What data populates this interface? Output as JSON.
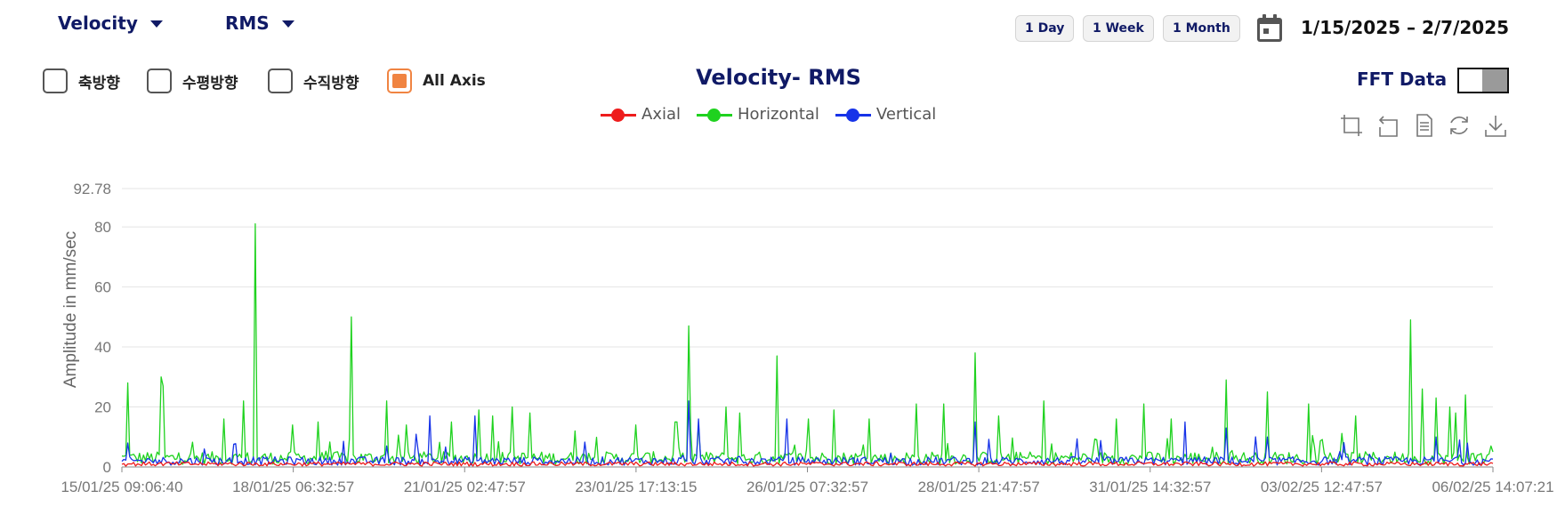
{
  "header": {
    "metric_dropdown": "Velocity",
    "stat_dropdown": "RMS",
    "range_buttons": [
      "1 Day",
      "1 Week",
      "1 Month"
    ],
    "date_range": "1/15/2025 – 2/7/2025"
  },
  "axis_filters": [
    {
      "label": "축방향",
      "checked": false
    },
    {
      "label": "수평방향",
      "checked": false
    },
    {
      "label": "수직방향",
      "checked": false
    },
    {
      "label": "All Axis",
      "checked": true
    }
  ],
  "fft": {
    "label": "FFT Data",
    "enabled": false
  },
  "toolbox_icons": [
    "zoom-icon",
    "zoom-reset-icon",
    "data-view-icon",
    "restore-icon",
    "save-image-icon"
  ],
  "colors": {
    "axial": "#ee1c1c",
    "horizontal": "#1fd21f",
    "vertical": "#1733e8",
    "accent": "#f08442",
    "navy": "#101a66"
  },
  "chart_data": {
    "type": "line",
    "title": "Velocity- RMS",
    "ylabel": "Amplitude in mm/sec",
    "xlabel": "",
    "ylim": [
      0,
      92.78
    ],
    "yticks": [
      0,
      20,
      40,
      60,
      80,
      92.78
    ],
    "x_tick_labels": [
      "15/01/25 09:06:40",
      "18/01/25 06:32:57",
      "21/01/25 02:47:57",
      "23/01/25 17:13:15",
      "26/01/25 07:32:57",
      "28/01/25 21:47:57",
      "31/01/25 14:32:57",
      "03/02/25 12:47:57",
      "06/02/25 14:07:21"
    ],
    "grid": true,
    "legend_position": "top-center",
    "series": [
      {
        "name": "Axial",
        "baseline": 1,
        "spikes": []
      },
      {
        "name": "Horizontal",
        "baseline": 3,
        "spikes": [
          {
            "t": 0.004,
            "v": 28
          },
          {
            "t": 0.028,
            "v": 30
          },
          {
            "t": 0.03,
            "v": 27
          },
          {
            "t": 0.075,
            "v": 16
          },
          {
            "t": 0.088,
            "v": 22
          },
          {
            "t": 0.097,
            "v": 81
          },
          {
            "t": 0.125,
            "v": 14
          },
          {
            "t": 0.143,
            "v": 15
          },
          {
            "t": 0.168,
            "v": 50
          },
          {
            "t": 0.193,
            "v": 22
          },
          {
            "t": 0.208,
            "v": 14
          },
          {
            "t": 0.24,
            "v": 15
          },
          {
            "t": 0.26,
            "v": 19
          },
          {
            "t": 0.27,
            "v": 17
          },
          {
            "t": 0.285,
            "v": 20
          },
          {
            "t": 0.297,
            "v": 18
          },
          {
            "t": 0.33,
            "v": 12
          },
          {
            "t": 0.375,
            "v": 14
          },
          {
            "t": 0.405,
            "v": 24
          },
          {
            "t": 0.404,
            "v": 15
          },
          {
            "t": 0.405,
            "v": 15
          },
          {
            "t": 0.414,
            "v": 47
          },
          {
            "t": 0.42,
            "v": 14
          },
          {
            "t": 0.44,
            "v": 20
          },
          {
            "t": 0.45,
            "v": 18
          },
          {
            "t": 0.478,
            "v": 37
          },
          {
            "t": 0.5,
            "v": 16
          },
          {
            "t": 0.52,
            "v": 19
          },
          {
            "t": 0.545,
            "v": 16
          },
          {
            "t": 0.58,
            "v": 21
          },
          {
            "t": 0.6,
            "v": 21
          },
          {
            "t": 0.622,
            "v": 38
          },
          {
            "t": 0.64,
            "v": 17
          },
          {
            "t": 0.672,
            "v": 22
          },
          {
            "t": 0.725,
            "v": 16
          },
          {
            "t": 0.745,
            "v": 21
          },
          {
            "t": 0.765,
            "v": 16
          },
          {
            "t": 0.805,
            "v": 29
          },
          {
            "t": 0.835,
            "v": 25
          },
          {
            "t": 0.865,
            "v": 21
          },
          {
            "t": 0.9,
            "v": 17
          },
          {
            "t": 0.94,
            "v": 49
          },
          {
            "t": 0.948,
            "v": 26
          },
          {
            "t": 0.958,
            "v": 23
          },
          {
            "t": 0.968,
            "v": 20
          },
          {
            "t": 0.973,
            "v": 18
          },
          {
            "t": 0.98,
            "v": 24
          },
          {
            "t": 0.998,
            "v": 7
          }
        ]
      },
      {
        "name": "Vertical",
        "baseline": 2,
        "spikes": [
          {
            "t": 0.004,
            "v": 8
          },
          {
            "t": 0.06,
            "v": 6
          },
          {
            "t": 0.225,
            "v": 17
          },
          {
            "t": 0.258,
            "v": 17
          },
          {
            "t": 0.414,
            "v": 22
          },
          {
            "t": 0.42,
            "v": 16
          },
          {
            "t": 0.485,
            "v": 16
          },
          {
            "t": 0.623,
            "v": 15
          },
          {
            "t": 0.775,
            "v": 15
          },
          {
            "t": 0.805,
            "v": 13
          },
          {
            "t": 0.835,
            "v": 10
          },
          {
            "t": 0.958,
            "v": 10
          },
          {
            "t": 0.975,
            "v": 9
          }
        ]
      }
    ]
  }
}
